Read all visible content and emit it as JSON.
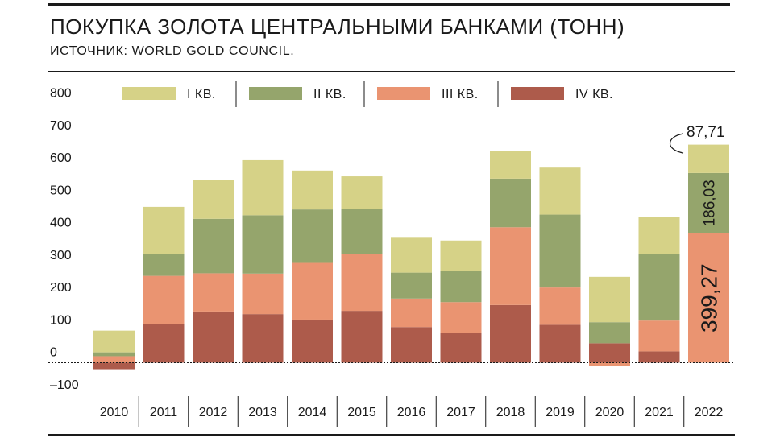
{
  "title": "ПОКУПКА ЗОЛОТА ЦЕНТРАЛЬНЫМИ БАНКАМИ (ТОНН)",
  "subtitle": "ИСТОЧНИК: WORLD GOLD COUNCIL.",
  "chart_data": {
    "type": "bar",
    "stacked": true,
    "categories": [
      "2010",
      "2011",
      "2012",
      "2013",
      "2014",
      "2015",
      "2016",
      "2017",
      "2018",
      "2019",
      "2020",
      "2021",
      "2022"
    ],
    "series": [
      {
        "name": "I КВ.",
        "color": "#d6d287",
        "values": [
          67,
          145,
          120,
          170,
          120,
          100,
          110,
          95,
          85,
          145,
          140,
          115,
          87.71
        ]
      },
      {
        "name": "II КВ.",
        "color": "#95a56c",
        "values": [
          12,
          68,
          168,
          180,
          165,
          140,
          80,
          95,
          150,
          225,
          65,
          205,
          186.03
        ]
      },
      {
        "name": "III КВ.",
        "color": "#ea9471",
        "values": [
          20,
          148,
          118,
          125,
          175,
          175,
          88,
          95,
          240,
          115,
          -10,
          95,
          399.27
        ]
      },
      {
        "name": "IV КВ.",
        "color": "#ad5b4b",
        "values": [
          -20,
          120,
          158,
          150,
          133,
          160,
          110,
          92,
          178,
          117,
          60,
          35,
          0
        ]
      }
    ],
    "yticks": [
      -100,
      0,
      100,
      200,
      300,
      400,
      500,
      600,
      700,
      800
    ],
    "ylim": [
      -100,
      800
    ],
    "annotations": [
      {
        "category": "2022",
        "series": "I КВ.",
        "label": "87,71"
      },
      {
        "category": "2022",
        "series": "II КВ.",
        "label": "186,03"
      },
      {
        "category": "2022",
        "series": "III КВ.",
        "label": "399,27"
      }
    ],
    "legend_position": "top"
  }
}
